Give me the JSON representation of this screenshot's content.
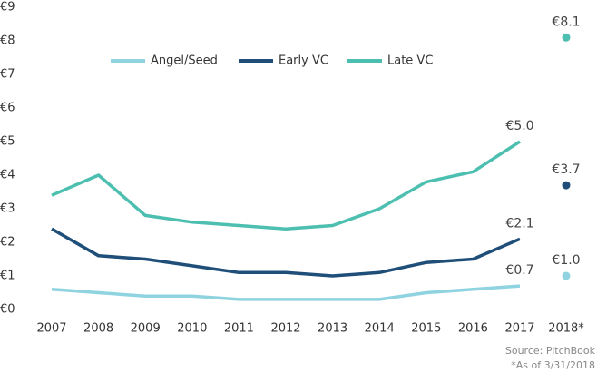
{
  "chart_data": {
    "type": "line",
    "categories": [
      "2007",
      "2008",
      "2009",
      "2010",
      "2011",
      "2012",
      "2013",
      "2014",
      "2015",
      "2016",
      "2017",
      "2018*"
    ],
    "series": [
      {
        "name": "Angel/Seed",
        "color": "#8fd3e0",
        "values": [
          0.6,
          0.5,
          0.4,
          0.4,
          0.3,
          0.3,
          0.3,
          0.3,
          0.5,
          0.6,
          0.7,
          1.0
        ],
        "value_labels": [
          null,
          null,
          null,
          null,
          null,
          null,
          null,
          null,
          null,
          null,
          "€0.7",
          "€1.0"
        ]
      },
      {
        "name": "Early VC",
        "color": "#1f4e79",
        "values": [
          2.4,
          1.6,
          1.5,
          1.3,
          1.1,
          1.1,
          1.0,
          1.1,
          1.4,
          1.5,
          2.1,
          3.7
        ],
        "value_labels": [
          null,
          null,
          null,
          null,
          null,
          null,
          null,
          null,
          null,
          null,
          "€2.1",
          "€3.7"
        ]
      },
      {
        "name": "Late VC",
        "color": "#4dbfb0",
        "values": [
          3.4,
          4.0,
          2.8,
          2.6,
          2.5,
          2.4,
          2.5,
          3.0,
          3.8,
          4.1,
          5.0,
          8.1
        ],
        "value_labels": [
          null,
          null,
          null,
          null,
          null,
          null,
          null,
          null,
          null,
          null,
          "€5.0",
          "€8.1"
        ]
      }
    ],
    "separate_last_point": true,
    "ylim": [
      0,
      9
    ],
    "yticks": [
      {
        "value": 0,
        "label": "€0"
      },
      {
        "value": 1,
        "label": "€1"
      },
      {
        "value": 2,
        "label": "€2"
      },
      {
        "value": 3,
        "label": "€3"
      },
      {
        "value": 4,
        "label": "€4"
      },
      {
        "value": 5,
        "label": "€5"
      },
      {
        "value": 6,
        "label": "€6"
      },
      {
        "value": 7,
        "label": "€7"
      },
      {
        "value": 8,
        "label": "€8"
      },
      {
        "value": 9,
        "label": "€9"
      }
    ],
    "grid": false,
    "legend": "top",
    "source": "Source: PitchBook",
    "footnote": "*As of 3/31/2018"
  }
}
